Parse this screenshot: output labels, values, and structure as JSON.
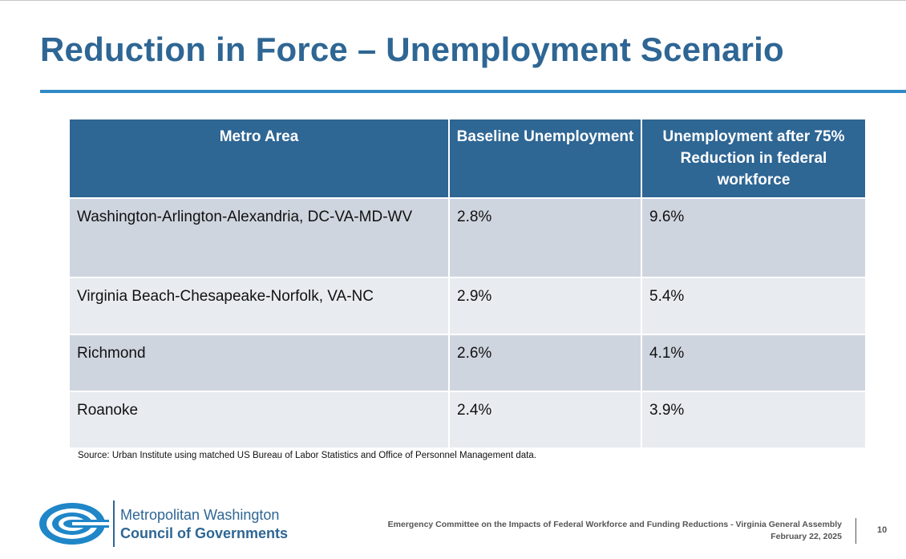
{
  "slide": {
    "title": "Reduction in Force – Unemployment Scenario",
    "page_number": "10"
  },
  "table": {
    "headers": [
      "Metro Area",
      "Baseline Unemployment",
      "Unemployment after 75% Reduction in federal workforce"
    ],
    "rows": [
      [
        "Washington-Arlington-Alexandria, DC-VA-MD-WV",
        "2.8%",
        "9.6%"
      ],
      [
        "Virginia Beach-Chesapeake-Norfolk, VA-NC",
        "2.9%",
        "5.4%"
      ],
      [
        "Richmond",
        "2.6%",
        "4.1%"
      ],
      [
        "Roanoke",
        "2.4%",
        "3.9%"
      ]
    ]
  },
  "source": "Source: Urban Institute using matched US Bureau of Labor Statistics and Office of Personnel Management data.",
  "logo": {
    "line1": "Metropolitan Washington",
    "line2": "Council of Governments"
  },
  "footer": {
    "line1": "Emergency Committee on the Impacts of Federal Workforce and Funding Reductions - Virginia General Assembly",
    "line2": "February 22, 2025"
  },
  "colors": {
    "title": "#2e6694",
    "rule": "#2f8ac6",
    "header_bg": "#2e6694",
    "row_odd": "#cfd5df",
    "row_even": "#e8ebf0"
  }
}
